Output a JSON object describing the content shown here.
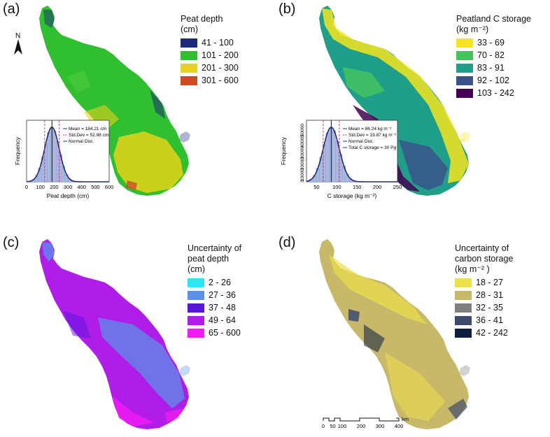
{
  "panels": {
    "a": {
      "letter": "(a)",
      "legend_title": "Peat depth\n(cm)",
      "legend": [
        {
          "label": "41 - 100",
          "color": "#1b2a7a"
        },
        {
          "label": "101 - 200",
          "color": "#2fbf2f"
        },
        {
          "label": "201 - 300",
          "color": "#e6d21a"
        },
        {
          "label": "301 - 600",
          "color": "#cc4b22"
        }
      ],
      "map_colors": [
        "#2fbf2f",
        "#46c83a",
        "#e6d21a",
        "#1b2a7a",
        "#cc4b22"
      ],
      "north_label": "N",
      "histogram": {
        "xlabel": "Peat depth (cm)",
        "ylabel": "Frequency",
        "xticks": [
          "0",
          "100",
          "200",
          "300",
          "400",
          "500",
          "600"
        ],
        "xlim": [
          0,
          600
        ],
        "annotations": [
          "Mean = 184.21 cm",
          "Std.Dev = 52.98 cm",
          "Normal Dist."
        ],
        "mean": 184.21,
        "sd": 52.98
      }
    },
    "b": {
      "letter": "(b)",
      "legend_title": "Peatland C storage\n(kg m⁻²)",
      "legend": [
        {
          "label": "33 - 69",
          "color": "#f5e41e"
        },
        {
          "label": "70 - 82",
          "color": "#45c45e"
        },
        {
          "label": "83 - 91",
          "color": "#1f9e89"
        },
        {
          "label": "92 - 102",
          "color": "#3b528b"
        },
        {
          "label": "103 - 242",
          "color": "#440154"
        }
      ],
      "map_colors": [
        "#45c45e",
        "#1f9e89",
        "#3b528b",
        "#440154",
        "#f5e41e"
      ],
      "histogram": {
        "xlabel": "C storage (kg  m⁻²)",
        "ylabel": "Frequency",
        "xticks": [
          "50",
          "100",
          "150",
          "200",
          "250"
        ],
        "yticks": [
          "0",
          "10000",
          "20000",
          "30000",
          "40000",
          "50000"
        ],
        "xlim": [
          25,
          250
        ],
        "annotations": [
          "Mean = 86.24 kg  m⁻²",
          "Std.Dev = 19.87 kg  m⁻²",
          "Normal Dist.",
          "Total C storage = 30 Pg"
        ],
        "mean": 86.24,
        "sd": 19.87
      }
    },
    "c": {
      "letter": "(c)",
      "legend_title": "Uncertainty of\npeat depth\n(cm)",
      "legend": [
        {
          "label": "2 - 26",
          "color": "#2ee6f2"
        },
        {
          "label": "27 - 36",
          "color": "#5b8fe8"
        },
        {
          "label": "37 - 48",
          "color": "#5a12e0"
        },
        {
          "label": "49 - 64",
          "color": "#b01de8"
        },
        {
          "label": "65 - 600",
          "color": "#f21cf2"
        }
      ],
      "map_colors": [
        "#b01de8",
        "#5b8fe8",
        "#f21cf2",
        "#5a12e0",
        "#2ee6f2"
      ]
    },
    "d": {
      "letter": "(d)",
      "legend_title": "Uncertainty of\ncarbon storage\n(kg m⁻² )",
      "legend": [
        {
          "label": "18 - 27",
          "color": "#ede04a"
        },
        {
          "label": "28 - 31",
          "color": "#c8b86a"
        },
        {
          "label": "32 - 35",
          "color": "#7f7f7f"
        },
        {
          "label": "36 - 41",
          "color": "#3d4a6e"
        },
        {
          "label": "42 - 242",
          "color": "#0f1c40"
        }
      ],
      "map_colors": [
        "#c8b86a",
        "#ede04a",
        "#7f7f7f",
        "#3d4a6e",
        "#0f1c40"
      ],
      "scalebar": {
        "ticks": [
          "0",
          "50",
          "100",
          "200",
          "300",
          "400"
        ],
        "unit": "km"
      }
    }
  }
}
